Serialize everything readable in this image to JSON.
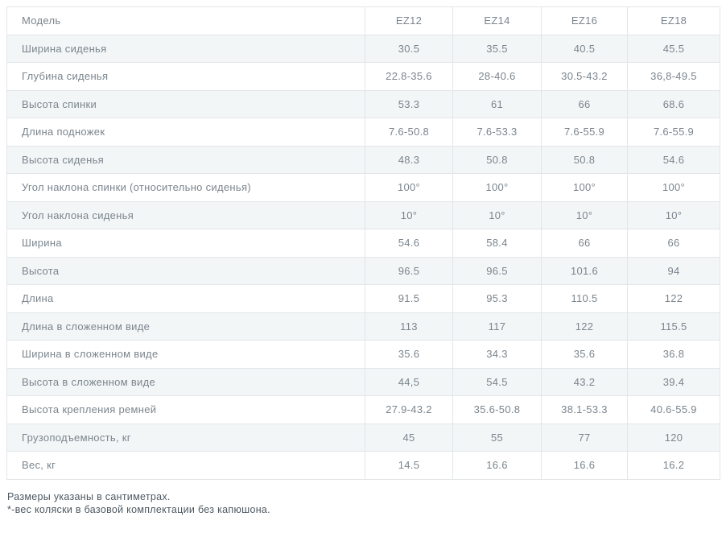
{
  "table": {
    "header": {
      "label": "Модель",
      "models": [
        "EZ12",
        "EZ14",
        "EZ16",
        "EZ18"
      ]
    },
    "rows": [
      {
        "label": "Ширина сиденья",
        "values": [
          "30.5",
          "35.5",
          "40.5",
          "45.5"
        ]
      },
      {
        "label": "Глубина сиденья",
        "values": [
          "22.8-35.6",
          "28-40.6",
          "30.5-43.2",
          "36,8-49.5"
        ]
      },
      {
        "label": "Высота спинки",
        "values": [
          "53.3",
          "61",
          "66",
          "68.6"
        ]
      },
      {
        "label": "Длина подножек",
        "values": [
          "7.6-50.8",
          "7.6-53.3",
          "7.6-55.9",
          "7.6-55.9"
        ]
      },
      {
        "label": "Высота сиденья",
        "values": [
          "48.3",
          "50.8",
          "50.8",
          "54.6"
        ]
      },
      {
        "label": "Угол наклона спинки (относительно сиденья)",
        "values": [
          "100°",
          "100°",
          "100°",
          "100°"
        ]
      },
      {
        "label": "Угол наклона сиденья",
        "values": [
          "10°",
          "10°",
          "10°",
          "10°"
        ]
      },
      {
        "label": "Ширина",
        "values": [
          "54.6",
          "58.4",
          "66",
          "66"
        ]
      },
      {
        "label": "Высота",
        "values": [
          "96.5",
          "96.5",
          "101.6",
          "94"
        ]
      },
      {
        "label": "Длина",
        "values": [
          "91.5",
          "95.3",
          "110.5",
          "122"
        ]
      },
      {
        "label": "Длина в сложенном виде",
        "values": [
          "113",
          "117",
          "122",
          "115.5"
        ]
      },
      {
        "label": "Ширина в сложенном виде",
        "values": [
          "35.6",
          "34.3",
          "35.6",
          "36.8"
        ]
      },
      {
        "label": "Высота в сложенном виде",
        "values": [
          "44,5",
          "54.5",
          "43.2",
          "39.4"
        ]
      },
      {
        "label": "Высота крепления ремней",
        "values": [
          "27.9-43.2",
          "35.6-50.8",
          "38.1-53.3",
          "40.6-55.9"
        ]
      },
      {
        "label": "Грузоподъемность, кг",
        "values": [
          "45",
          "55",
          "77",
          "120"
        ]
      },
      {
        "label": "Вес, кг",
        "values": [
          "14.5",
          "16.6",
          "16.6",
          "16.2"
        ]
      }
    ]
  },
  "footnotes": [
    "Размеры указаны в сантиметрах.",
    "*-вес коляски в базовой комплектации без капюшона."
  ],
  "colors": {
    "row_alt_background": "#f3f6f7",
    "border": "#e2e6e8",
    "table_text": "#7b858d",
    "footnote_text": "#4e5861"
  }
}
